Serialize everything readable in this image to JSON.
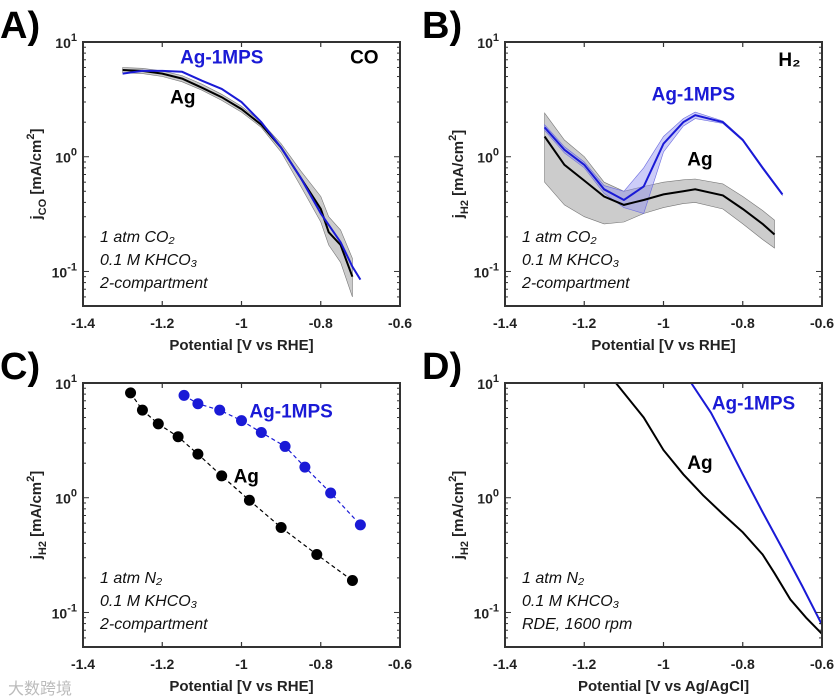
{
  "watermark": "大数跨境",
  "chart_data": [
    {
      "panel": "A)",
      "type": "line",
      "xlabel": "Potential [V vs RHE]",
      "ylabel": {
        "base": "j",
        "sub": "CO",
        "unit": " [mA/cm",
        "sup": "2",
        "end": "]"
      },
      "yscale": "log",
      "xlim": [
        -1.4,
        -0.6
      ],
      "ylim": [
        0.05,
        10
      ],
      "xticks": [
        "-1.4",
        "-1.2",
        "-1",
        "-0.8",
        "-0.6"
      ],
      "yticks": [
        {
          "base": "10",
          "exp": "-1",
          "value": 0.1
        },
        {
          "base": "10",
          "exp": "0",
          "value": 1
        },
        {
          "base": "10",
          "exp": "1",
          "value": 10
        }
      ],
      "product_label": {
        "text": "CO",
        "x": -0.726,
        "y": 6.5
      },
      "conditions": [
        "1 atm CO₂",
        "0.1 M KHCO₃",
        "2-compartment"
      ],
      "series": [
        {
          "name": "Ag",
          "color": "#000000",
          "label_pos": [
            -1.18,
            2.9
          ],
          "x": [
            -1.3,
            -1.25,
            -1.2,
            -1.15,
            -1.1,
            -1.05,
            -1.0,
            -0.95,
            -0.9,
            -0.85,
            -0.8,
            -0.78,
            -0.75,
            -0.72
          ],
          "y": [
            5.7,
            5.6,
            5.3,
            4.8,
            4.0,
            3.3,
            2.6,
            1.9,
            1.2,
            0.65,
            0.35,
            0.22,
            0.17,
            0.09
          ],
          "band_low": [
            5.4,
            5.3,
            5.0,
            4.5,
            3.8,
            3.1,
            2.45,
            1.8,
            1.1,
            0.55,
            0.27,
            0.17,
            0.12,
            0.06
          ],
          "band_high": [
            6.0,
            5.9,
            5.6,
            5.1,
            4.3,
            3.5,
            2.75,
            2.0,
            1.3,
            0.75,
            0.45,
            0.3,
            0.23,
            0.13
          ]
        },
        {
          "name": "Ag-1MPS",
          "color": "#1a1ad6",
          "label_pos": [
            -1.155,
            6.5
          ],
          "x": [
            -1.3,
            -1.25,
            -1.2,
            -1.15,
            -1.1,
            -1.05,
            -1.0,
            -0.95,
            -0.9,
            -0.85,
            -0.8,
            -0.75,
            -0.72,
            -0.7
          ],
          "y": [
            5.3,
            5.6,
            5.6,
            5.5,
            4.6,
            3.9,
            3.0,
            2.0,
            1.2,
            0.65,
            0.32,
            0.18,
            0.11,
            0.085
          ]
        }
      ]
    },
    {
      "panel": "B)",
      "type": "line",
      "xlabel": "Potential [V vs RHE]",
      "ylabel": {
        "base": "j",
        "sub": "H2",
        "unit": " [mA/cm",
        "sup": "2",
        "end": "]"
      },
      "yscale": "log",
      "xlim": [
        -1.4,
        -0.6
      ],
      "ylim": [
        0.05,
        10
      ],
      "xticks": [
        "-1.4",
        "-1.2",
        "-1",
        "-0.8",
        "-0.6"
      ],
      "yticks": [
        {
          "base": "10",
          "exp": "-1",
          "value": 0.1
        },
        {
          "base": "10",
          "exp": "0",
          "value": 1
        },
        {
          "base": "10",
          "exp": "1",
          "value": 10
        }
      ],
      "product_label": {
        "text": "H₂",
        "x": -0.71,
        "y": 6.2
      },
      "conditions": [
        "1 atm CO₂",
        "0.1 M KHCO₃",
        "2-compartment"
      ],
      "series": [
        {
          "name": "Ag",
          "color": "#000000",
          "label_pos": [
            -0.94,
            0.84
          ],
          "x": [
            -1.3,
            -1.25,
            -1.2,
            -1.15,
            -1.1,
            -1.05,
            -1.0,
            -0.95,
            -0.92,
            -0.85,
            -0.8,
            -0.75,
            -0.72
          ],
          "y": [
            1.5,
            0.85,
            0.62,
            0.45,
            0.38,
            0.42,
            0.47,
            0.5,
            0.52,
            0.46,
            0.35,
            0.26,
            0.21
          ],
          "band_low": [
            0.6,
            0.38,
            0.3,
            0.26,
            0.27,
            0.32,
            0.36,
            0.39,
            0.4,
            0.35,
            0.26,
            0.19,
            0.16
          ],
          "band_high": [
            2.4,
            1.4,
            1.0,
            0.6,
            0.5,
            0.55,
            0.6,
            0.63,
            0.64,
            0.58,
            0.45,
            0.34,
            0.28
          ]
        },
        {
          "name": "Ag-1MPS",
          "color": "#1a1ad6",
          "label_pos": [
            -1.03,
            3.1
          ],
          "x": [
            -1.3,
            -1.25,
            -1.2,
            -1.15,
            -1.1,
            -1.05,
            -1.0,
            -0.95,
            -0.92,
            -0.85,
            -0.8,
            -0.75,
            -0.7
          ],
          "y": [
            1.8,
            1.15,
            0.85,
            0.52,
            0.42,
            0.55,
            1.3,
            2.0,
            2.3,
            2.0,
            1.4,
            0.8,
            0.47
          ],
          "band_low": [
            1.7,
            1.08,
            0.8,
            0.48,
            0.36,
            0.32,
            1.1,
            1.85,
            2.15,
            1.95,
            1.37,
            0.78,
            0.46
          ],
          "band_high": [
            1.9,
            1.22,
            0.9,
            0.56,
            0.5,
            0.8,
            1.5,
            2.15,
            2.45,
            2.05,
            1.43,
            0.82,
            0.48
          ]
        }
      ]
    },
    {
      "panel": "C)",
      "type": "scatter",
      "xlabel": "Potential [V vs RHE]",
      "ylabel": {
        "base": "j",
        "sub": "H2",
        "unit": " [mA/cm",
        "sup": "2",
        "end": "]"
      },
      "yscale": "log",
      "xlim": [
        -1.4,
        -0.6
      ],
      "ylim": [
        0.05,
        10
      ],
      "xticks": [
        "-1.4",
        "-1.2",
        "-1",
        "-0.8",
        "-0.6"
      ],
      "yticks": [
        {
          "base": "10",
          "exp": "-1",
          "value": 0.1
        },
        {
          "base": "10",
          "exp": "0",
          "value": 1
        },
        {
          "base": "10",
          "exp": "1",
          "value": 10
        }
      ],
      "conditions": [
        "1 atm N₂",
        "0.1 M KHCO₃",
        "2-compartment"
      ],
      "series": [
        {
          "name": "Ag",
          "color": "#000000",
          "label_pos": [
            -1.02,
            1.36
          ],
          "markers": true,
          "dashed": true,
          "x": [
            -1.28,
            -1.25,
            -1.21,
            -1.16,
            -1.11,
            -1.05,
            -0.98,
            -0.9,
            -0.81,
            -0.72
          ],
          "y": [
            8.2,
            5.8,
            4.4,
            3.4,
            2.4,
            1.55,
            0.95,
            0.55,
            0.32,
            0.19
          ]
        },
        {
          "name": "Ag-1MPS",
          "color": "#1a1ad6",
          "label_pos": [
            -0.98,
            5.0
          ],
          "markers": true,
          "dashed": true,
          "x": [
            -1.145,
            -1.11,
            -1.055,
            -1.0,
            -0.95,
            -0.89,
            -0.84,
            -0.775,
            -0.7
          ],
          "y": [
            7.8,
            6.6,
            5.8,
            4.7,
            3.7,
            2.8,
            1.85,
            1.1,
            0.58
          ]
        }
      ]
    },
    {
      "panel": "D)",
      "type": "line",
      "xlabel": "Potential [V vs Ag/AgCl]",
      "ylabel": {
        "base": "j",
        "sub": "H2",
        "unit": " [mA/cm",
        "sup": "2",
        "end": "]"
      },
      "yscale": "log",
      "xlim": [
        -1.4,
        -0.6
      ],
      "ylim": [
        0.05,
        10
      ],
      "xticks": [
        "-1.4",
        "-1.2",
        "-1",
        "-0.8",
        "-0.6"
      ],
      "yticks": [
        {
          "base": "10",
          "exp": "-1",
          "value": 0.1
        },
        {
          "base": "10",
          "exp": "0",
          "value": 1
        },
        {
          "base": "10",
          "exp": "1",
          "value": 10
        }
      ],
      "conditions": [
        "1 atm N₂",
        "0.1 M KHCO₃",
        "RDE, 1600 rpm"
      ],
      "series": [
        {
          "name": "Ag",
          "color": "#000000",
          "label_pos": [
            -0.94,
            1.78
          ],
          "x": [
            -1.12,
            -1.05,
            -1.0,
            -0.95,
            -0.9,
            -0.85,
            -0.8,
            -0.75,
            -0.72,
            -0.68,
            -0.64,
            -0.6
          ],
          "y": [
            10,
            5,
            2.6,
            1.6,
            1.05,
            0.72,
            0.5,
            0.32,
            0.22,
            0.13,
            0.09,
            0.065
          ]
        },
        {
          "name": "Ag-1MPS",
          "color": "#1a1ad6",
          "label_pos": [
            -0.878,
            5.9
          ],
          "x": [
            -0.93,
            -0.88,
            -0.85,
            -0.8,
            -0.75,
            -0.7,
            -0.65,
            -0.6
          ],
          "y": [
            10,
            5.5,
            3.5,
            1.6,
            0.75,
            0.36,
            0.17,
            0.078
          ]
        }
      ]
    }
  ]
}
